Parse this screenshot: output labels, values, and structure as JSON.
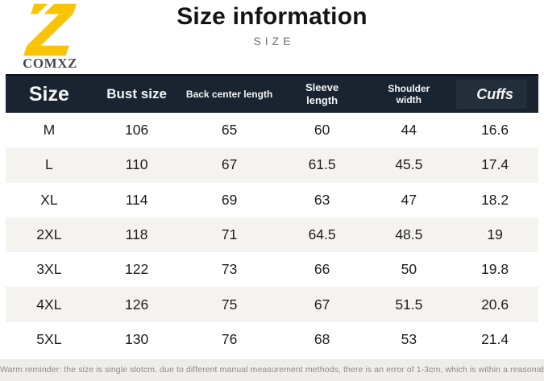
{
  "logo": {
    "glyph": "Z",
    "brand": "COMXZ",
    "color": "#f9c407"
  },
  "header": {
    "title": "Size information",
    "subtitle": "SIZE"
  },
  "chart_data": {
    "type": "table",
    "title": "Size information",
    "columns": [
      "Size",
      "Bust size",
      "Back center length",
      "Sleeve length",
      "Shoulder width",
      "Cuffs"
    ],
    "rows": [
      {
        "size": "M",
        "values": [
          106,
          65,
          60,
          44,
          16.6
        ]
      },
      {
        "size": "L",
        "values": [
          110,
          67,
          61.5,
          45.5,
          17.4
        ]
      },
      {
        "size": "XL",
        "values": [
          114,
          69,
          63,
          47,
          18.2
        ]
      },
      {
        "size": "2XL",
        "values": [
          118,
          71,
          64.5,
          48.5,
          19
        ]
      },
      {
        "size": "3XL",
        "values": [
          122,
          73,
          66,
          50,
          19.8
        ]
      },
      {
        "size": "4XL",
        "values": [
          126,
          75,
          67,
          51.5,
          20.6
        ]
      },
      {
        "size": "5XL",
        "values": [
          130,
          76,
          68,
          53,
          21.4
        ]
      }
    ],
    "layout": {
      "striped": true,
      "stripe_color": "#f4f3ef",
      "header_bg": "#1a2430",
      "grid": false
    }
  },
  "footer": {
    "reminder": "Warm reminder: the size is single slotcm. due to different manual measurement methods, there is an error of 1-3cm, which is within a reasonable range"
  },
  "colors": {
    "header_bg": "#1a2430",
    "accent_yellow": "#f9c407",
    "stripe_bg": "#f4f3ef",
    "footer_bg": "#efede9",
    "title_text": "#141414",
    "header_text": "#f4f5f6"
  }
}
